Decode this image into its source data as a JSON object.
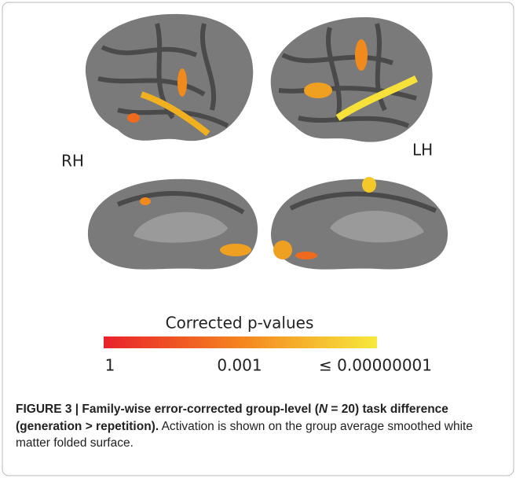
{
  "figure": {
    "labels": {
      "right": "RH",
      "left": "LH"
    },
    "colorbar": {
      "title": "Corrected p-values",
      "colors": [
        "#e8212b",
        "#f5841f",
        "#f7e93c"
      ],
      "ticks": [
        "1",
        "0.001",
        "≤ 0.00000001"
      ]
    },
    "caption": {
      "label": "FIGURE 3 | Family-wise error-corrected group-level (",
      "n": "N",
      "bold_rest": " = 20) task difference (generation > repetition).",
      "text": " Activation is shown on the group average smoothed white matter folded surface."
    }
  }
}
